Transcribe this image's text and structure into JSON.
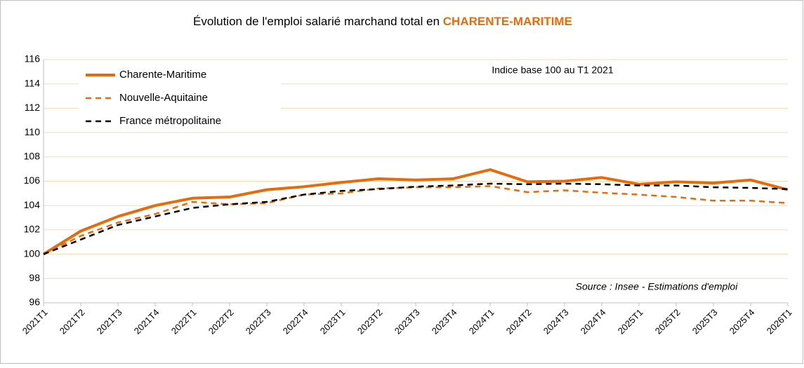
{
  "chart_data": {
    "type": "line",
    "title": "Évolution de l'emploi salarié marchand total en ",
    "title_highlight": "CHARENTE-MARITIME",
    "annotations": [
      "Indice base 100 au T1 2021",
      "Source : Insee - Estimations d'emploi"
    ],
    "categories": [
      "2021T1",
      "2021T2",
      "2021T3",
      "2021T4",
      "2022T1",
      "2022T2",
      "2022T3",
      "2022T4",
      "2023T1",
      "2023T2",
      "2023T3",
      "2023T4",
      "2024T1",
      "2024T2",
      "2024T3",
      "2024T4",
      "2025T1",
      "2025T2",
      "2025T3",
      "2025T4",
      "2026T1"
    ],
    "series": [
      {
        "name": "Charente-Maritime",
        "color": "#e46c0a",
        "dash": "solid",
        "values": [
          100,
          101.9,
          103.1,
          104.0,
          104.6,
          104.7,
          105.3,
          105.55,
          105.9,
          106.2,
          106.1,
          106.2,
          106.95,
          105.95,
          106.0,
          106.3,
          105.75,
          105.95,
          105.85,
          106.1,
          105.3
        ]
      },
      {
        "name": "Nouvelle-Aquitaine",
        "color": "#e46c0a",
        "dash": "dashed",
        "values": [
          100,
          101.5,
          102.6,
          103.3,
          104.3,
          104.1,
          104.2,
          104.9,
          105.0,
          105.4,
          105.5,
          105.5,
          105.6,
          105.1,
          105.25,
          105.05,
          104.9,
          104.7,
          104.4,
          104.4,
          104.2
        ]
      },
      {
        "name": "France métropolitaine",
        "color": "#000000",
        "dash": "dashed",
        "values": [
          100,
          101.2,
          102.4,
          103.1,
          103.8,
          104.1,
          104.3,
          104.9,
          105.2,
          105.35,
          105.55,
          105.65,
          105.8,
          105.75,
          105.8,
          105.75,
          105.65,
          105.65,
          105.5,
          105.45,
          105.35
        ]
      }
    ],
    "ylim": [
      96,
      116
    ],
    "yticks": [
      96,
      98,
      100,
      102,
      104,
      106,
      108,
      110,
      112,
      114,
      116
    ],
    "grid": true,
    "grid_color": "#f8d9b4",
    "legend": "upper left"
  }
}
